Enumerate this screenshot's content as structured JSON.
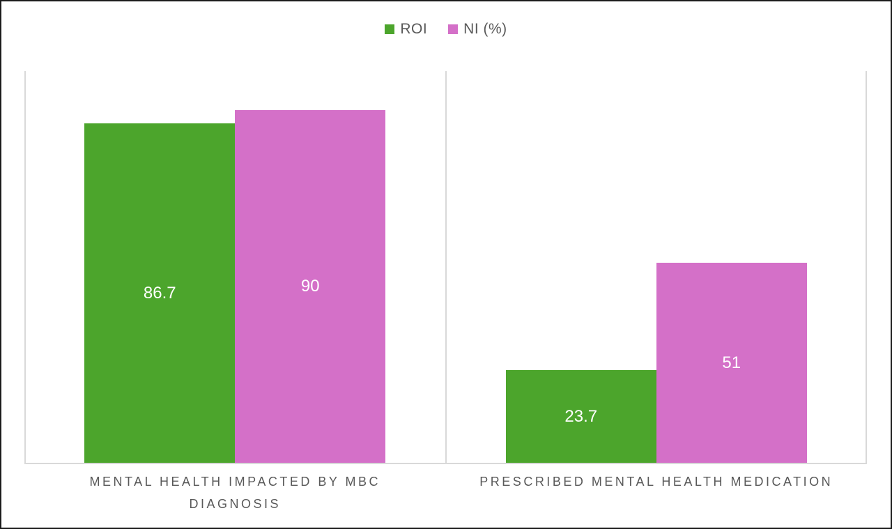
{
  "window": {
    "background": "#ffffff",
    "border_color": "#1c1c1c"
  },
  "legend": {
    "position": "top-center",
    "items": [
      {
        "label": "ROI",
        "color": "#4CA52C"
      },
      {
        "label": "NI (%)",
        "color": "#D470C8"
      }
    ]
  },
  "chart_data": {
    "type": "bar",
    "title": "",
    "xlabel": "",
    "ylabel": "",
    "categories": [
      "MENTAL HEALTH IMPACTED BY MBC DIAGNOSIS",
      "PRESCRIBED MENTAL HEALTH MEDICATION"
    ],
    "series": [
      {
        "name": "ROI",
        "color": "#4CA52C",
        "values": [
          86.7,
          23.7
        ]
      },
      {
        "name": "NI (%)",
        "color": "#D470C8",
        "values": [
          90,
          51
        ]
      }
    ],
    "data_labels": {
      "ROI": [
        "86.7",
        "23.7"
      ],
      "NI (%)": [
        "90",
        "51"
      ]
    },
    "ylim": [
      0,
      100
    ],
    "y_axis_visible": false,
    "gridlines": "vertical category boundary lines only",
    "gridline_color": "#D9D9D9",
    "legend_position": "top-center",
    "bar_label_color": "#ffffff",
    "category_label_color": "#595959"
  }
}
